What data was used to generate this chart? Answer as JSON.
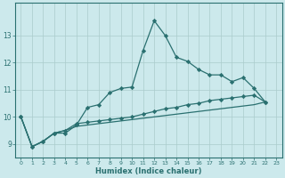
{
  "xlabel": "Humidex (Indice chaleur)",
  "xlim": [
    -0.5,
    23.5
  ],
  "ylim": [
    8.5,
    14.2
  ],
  "yticks": [
    9,
    10,
    11,
    12,
    13
  ],
  "xticks": [
    0,
    1,
    2,
    3,
    4,
    5,
    6,
    7,
    8,
    9,
    10,
    11,
    12,
    13,
    14,
    15,
    16,
    17,
    18,
    19,
    20,
    21,
    22,
    23
  ],
  "background_color": "#cce9ec",
  "grid_color": "#aacccc",
  "line_color": "#2a7070",
  "series0_x": [
    0,
    1,
    2,
    3,
    4,
    5,
    6,
    7,
    8,
    9,
    10,
    11,
    12,
    13,
    14,
    15,
    16,
    17,
    18,
    19,
    20,
    21,
    22
  ],
  "series0_y": [
    10.0,
    8.9,
    9.1,
    9.4,
    9.4,
    9.7,
    10.35,
    10.45,
    10.9,
    11.05,
    11.1,
    12.45,
    13.55,
    13.0,
    12.2,
    12.05,
    11.75,
    11.55,
    11.55,
    11.3,
    11.45,
    11.05,
    10.55
  ],
  "series1_x": [
    0,
    1,
    2,
    3,
    4,
    5,
    6,
    7,
    8,
    9,
    10,
    11,
    12,
    13,
    14,
    15,
    16,
    17,
    18,
    19,
    20,
    21,
    22
  ],
  "series1_y": [
    10.0,
    8.9,
    9.1,
    9.4,
    9.5,
    9.75,
    9.8,
    9.85,
    9.9,
    9.95,
    10.0,
    10.1,
    10.2,
    10.3,
    10.35,
    10.45,
    10.5,
    10.6,
    10.65,
    10.7,
    10.75,
    10.8,
    10.55
  ],
  "series2_x": [
    0,
    1,
    2,
    3,
    4,
    5,
    6,
    7,
    8,
    9,
    10,
    11,
    12,
    13,
    14,
    15,
    16,
    17,
    18,
    19,
    20,
    21,
    22
  ],
  "series2_y": [
    10.0,
    8.9,
    9.1,
    9.4,
    9.5,
    9.65,
    9.7,
    9.75,
    9.8,
    9.85,
    9.9,
    9.95,
    10.0,
    10.05,
    10.1,
    10.15,
    10.2,
    10.25,
    10.3,
    10.35,
    10.4,
    10.45,
    10.55
  ]
}
